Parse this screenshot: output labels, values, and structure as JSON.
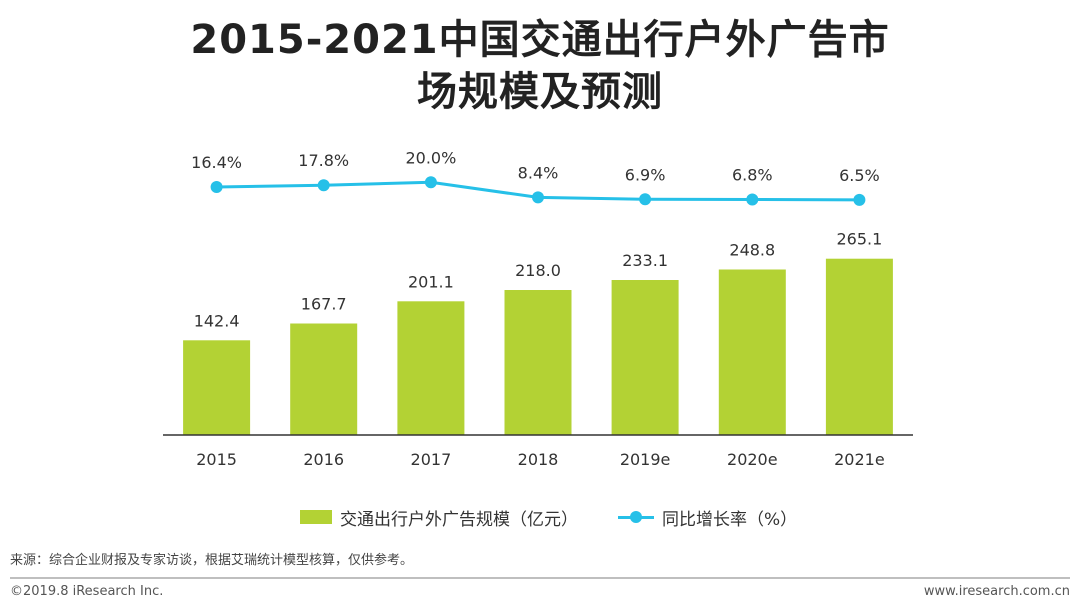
{
  "title_line1": "2015-2021中国交通出行户外广告市",
  "title_line2": "场规模及预测",
  "chart_data": {
    "type": "bar",
    "categories": [
      "2015",
      "2016",
      "2017",
      "2018",
      "2019e",
      "2020e",
      "2021e"
    ],
    "series": [
      {
        "name": "交通出行户外广告规模（亿元）",
        "type": "bar",
        "values": [
          142.4,
          167.7,
          201.1,
          218.0,
          233.1,
          248.8,
          265.1
        ],
        "labels": [
          "142.4",
          "167.7",
          "201.1",
          "218.0",
          "233.1",
          "248.8",
          "265.1"
        ],
        "color": "#b3d234"
      },
      {
        "name": "同比增长率（%）",
        "type": "line",
        "values": [
          16.4,
          17.8,
          20.0,
          8.4,
          6.9,
          6.8,
          6.5
        ],
        "labels": [
          "16.4%",
          "17.8%",
          "20.0%",
          "8.4%",
          "6.9%",
          "6.8%",
          "6.5%"
        ],
        "color": "#26c0e8"
      }
    ],
    "legend_position": "bottom",
    "grid": false
  },
  "source": "来源：综合企业财报及专家访谈，根据艾瑞统计模型核算，仅供参考。",
  "copyright": "©2019.8 iResearch Inc.",
  "website": "www.iresearch.com.cn"
}
